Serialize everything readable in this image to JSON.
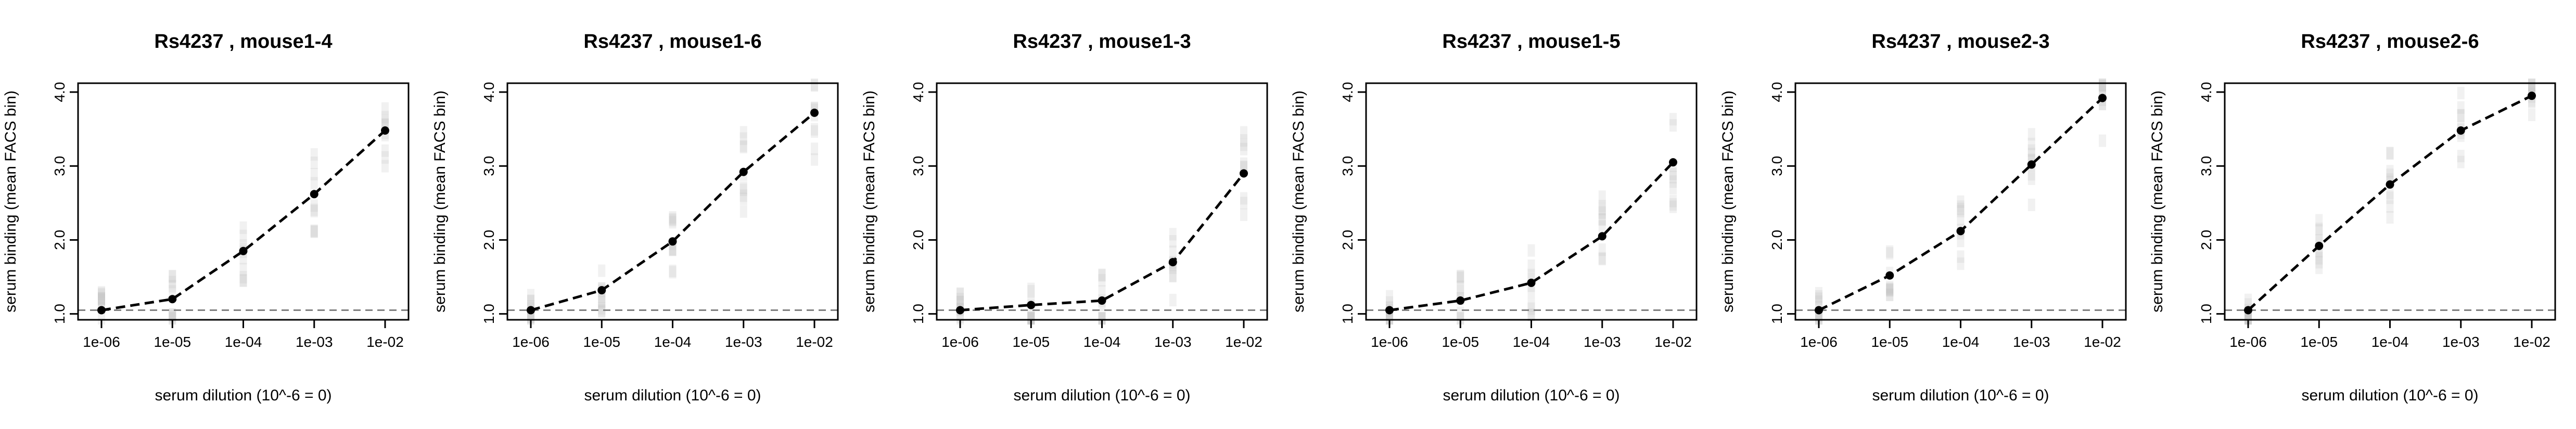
{
  "chart_data": [
    {
      "type": "line",
      "title": "Rs4237 , mouse1-4",
      "xlabel": "serum dilution (10^-6 = 0)",
      "ylabel": "serum binding (mean FACS bin)",
      "x": [
        1e-06,
        1e-05,
        0.0001,
        0.001,
        0.01
      ],
      "x_tick_labels": [
        "1e-06",
        "1e-05",
        "1e-04",
        "1e-03",
        "1e-02"
      ],
      "y_tick_labels": [
        "1.0",
        "2.0",
        "3.0",
        "4.0"
      ],
      "y_ticks": [
        1,
        2,
        3,
        4
      ],
      "ylim": [
        0.92,
        4.12
      ],
      "baseline": 1.05,
      "series": [
        {
          "values": [
            1.05,
            1.2,
            1.85,
            2.62,
            3.48
          ]
        }
      ]
    },
    {
      "type": "line",
      "title": "Rs4237 , mouse1-6",
      "xlabel": "serum dilution (10^-6 = 0)",
      "ylabel": "serum binding (mean FACS bin)",
      "x": [
        1e-06,
        1e-05,
        0.0001,
        0.001,
        0.01
      ],
      "x_tick_labels": [
        "1e-06",
        "1e-05",
        "1e-04",
        "1e-03",
        "1e-02"
      ],
      "y_tick_labels": [
        "1.0",
        "2.0",
        "3.0",
        "4.0"
      ],
      "y_ticks": [
        1,
        2,
        3,
        4
      ],
      "ylim": [
        0.92,
        4.12
      ],
      "baseline": 1.05,
      "series": [
        {
          "values": [
            1.05,
            1.32,
            1.98,
            2.92,
            3.72
          ]
        }
      ]
    },
    {
      "type": "line",
      "title": "Rs4237 , mouse1-3",
      "xlabel": "serum dilution (10^-6 = 0)",
      "ylabel": "serum binding (mean FACS bin)",
      "x": [
        1e-06,
        1e-05,
        0.0001,
        0.001,
        0.01
      ],
      "x_tick_labels": [
        "1e-06",
        "1e-05",
        "1e-04",
        "1e-03",
        "1e-02"
      ],
      "y_tick_labels": [
        "1.0",
        "2.0",
        "3.0",
        "4.0"
      ],
      "y_ticks": [
        1,
        2,
        3,
        4
      ],
      "ylim": [
        0.92,
        4.12
      ],
      "baseline": 1.05,
      "series": [
        {
          "values": [
            1.05,
            1.12,
            1.18,
            1.7,
            2.9
          ]
        }
      ]
    },
    {
      "type": "line",
      "title": "Rs4237 , mouse1-5",
      "xlabel": "serum dilution (10^-6 = 0)",
      "ylabel": "serum binding (mean FACS bin)",
      "x": [
        1e-06,
        1e-05,
        0.0001,
        0.001,
        0.01
      ],
      "x_tick_labels": [
        "1e-06",
        "1e-05",
        "1e-04",
        "1e-03",
        "1e-02"
      ],
      "y_tick_labels": [
        "1.0",
        "2.0",
        "3.0",
        "4.0"
      ],
      "y_ticks": [
        1,
        2,
        3,
        4
      ],
      "ylim": [
        0.92,
        4.12
      ],
      "baseline": 1.05,
      "series": [
        {
          "values": [
            1.05,
            1.18,
            1.42,
            2.05,
            3.05
          ]
        }
      ]
    },
    {
      "type": "line",
      "title": "Rs4237 , mouse2-3",
      "xlabel": "serum dilution (10^-6 = 0)",
      "ylabel": "serum binding (mean FACS bin)",
      "x": [
        1e-06,
        1e-05,
        0.0001,
        0.001,
        0.01
      ],
      "x_tick_labels": [
        "1e-06",
        "1e-05",
        "1e-04",
        "1e-03",
        "1e-02"
      ],
      "y_tick_labels": [
        "1.0",
        "2.0",
        "3.0",
        "4.0"
      ],
      "y_ticks": [
        1,
        2,
        3,
        4
      ],
      "ylim": [
        0.92,
        4.12
      ],
      "baseline": 1.05,
      "series": [
        {
          "values": [
            1.05,
            1.52,
            2.12,
            3.02,
            3.92
          ]
        }
      ]
    },
    {
      "type": "line",
      "title": "Rs4237 , mouse2-6",
      "xlabel": "serum dilution (10^-6 = 0)",
      "ylabel": "serum binding (mean FACS bin)",
      "x": [
        1e-06,
        1e-05,
        0.0001,
        0.001,
        0.01
      ],
      "x_tick_labels": [
        "1e-06",
        "1e-05",
        "1e-04",
        "1e-03",
        "1e-02"
      ],
      "y_tick_labels": [
        "1.0",
        "2.0",
        "3.0",
        "4.0"
      ],
      "y_ticks": [
        1,
        2,
        3,
        4
      ],
      "ylim": [
        0.92,
        4.12
      ],
      "baseline": 1.05,
      "series": [
        {
          "values": [
            1.05,
            1.92,
            2.75,
            3.48,
            3.95
          ]
        }
      ]
    }
  ],
  "style": {
    "line_color": "#000000",
    "baseline_color": "#808080",
    "spread_color": "#bdbdbd",
    "line_dash": "dashed",
    "baseline_dash": "dashed",
    "x_scale": "log",
    "grid": false,
    "legend": "none"
  }
}
